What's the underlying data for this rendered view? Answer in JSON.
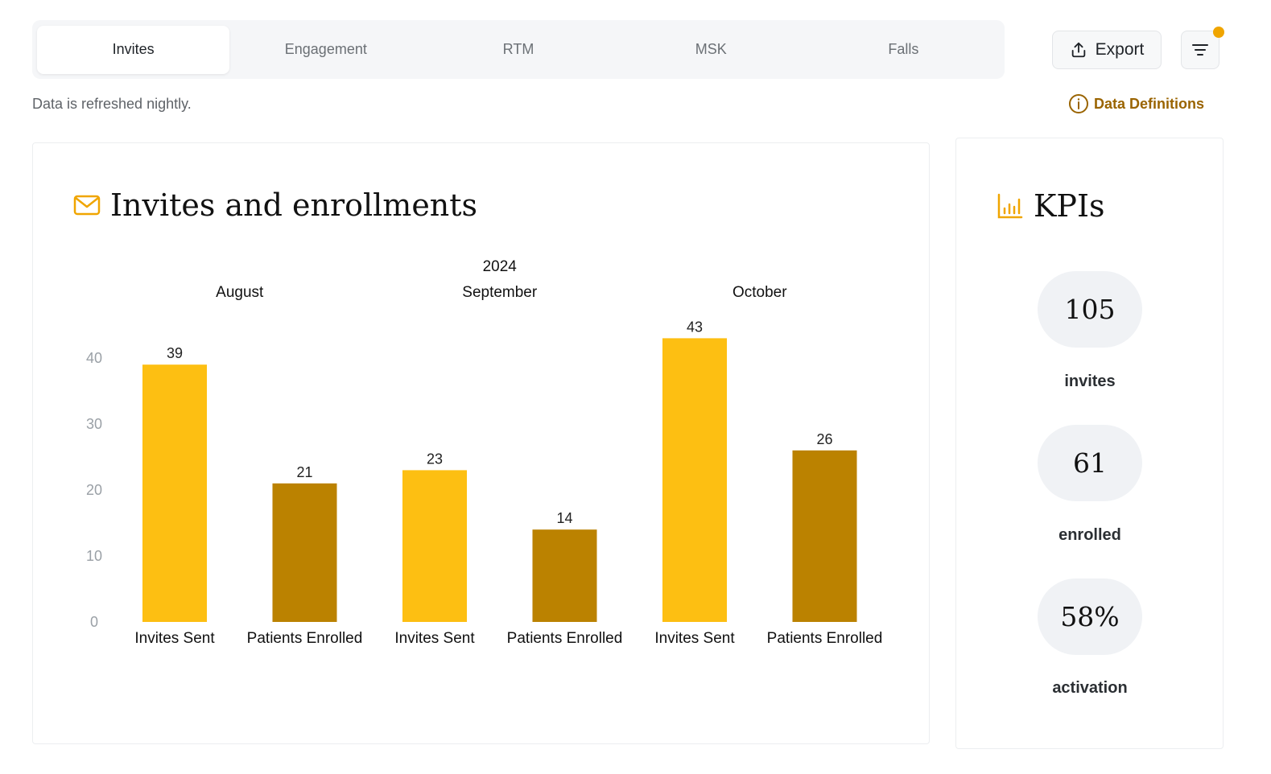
{
  "tabs": [
    {
      "label": "Invites",
      "active": true
    },
    {
      "label": "Engagement",
      "active": false
    },
    {
      "label": "RTM",
      "active": false
    },
    {
      "label": "MSK",
      "active": false
    },
    {
      "label": "Falls",
      "active": false
    }
  ],
  "toolbar": {
    "export_label": "Export",
    "export_icon": "upload-icon",
    "filter_icon": "filter-icon",
    "filter_indicator_color": "#f0a500"
  },
  "notes": {
    "refresh": "Data is refreshed nightly.",
    "definitions_link": "Data Definitions"
  },
  "colors": {
    "accent": "#f0a500",
    "link": "#9a6400",
    "invites_bar": "#fdbf12",
    "enrolled_bar": "#bb8200"
  },
  "chart_card": {
    "title": "Invites and enrollments",
    "icon": "mail-icon"
  },
  "kpis": {
    "title": "KPIs",
    "icon": "bar-chart-icon",
    "items": [
      {
        "value": "105",
        "label": "invites"
      },
      {
        "value": "61",
        "label": "enrolled"
      },
      {
        "value": "58%",
        "label": "activation"
      }
    ]
  },
  "chart_data": {
    "type": "bar",
    "year": "2024",
    "groups": [
      {
        "month": "August",
        "bars": [
          {
            "category": "Invites Sent",
            "value": 39,
            "series": "invites"
          },
          {
            "category": "Patients Enrolled",
            "value": 21,
            "series": "enrolled"
          }
        ]
      },
      {
        "month": "September",
        "bars": [
          {
            "category": "Invites Sent",
            "value": 23,
            "series": "invites"
          },
          {
            "category": "Patients Enrolled",
            "value": 14,
            "series": "enrolled"
          }
        ]
      },
      {
        "month": "October",
        "bars": [
          {
            "category": "Invites Sent",
            "value": 43,
            "series": "invites"
          },
          {
            "category": "Patients Enrolled",
            "value": 26,
            "series": "enrolled"
          }
        ]
      }
    ],
    "yticks": [
      0,
      10,
      20,
      30,
      40
    ],
    "ylim": [
      0,
      43
    ],
    "grid": false,
    "legend": "none"
  }
}
